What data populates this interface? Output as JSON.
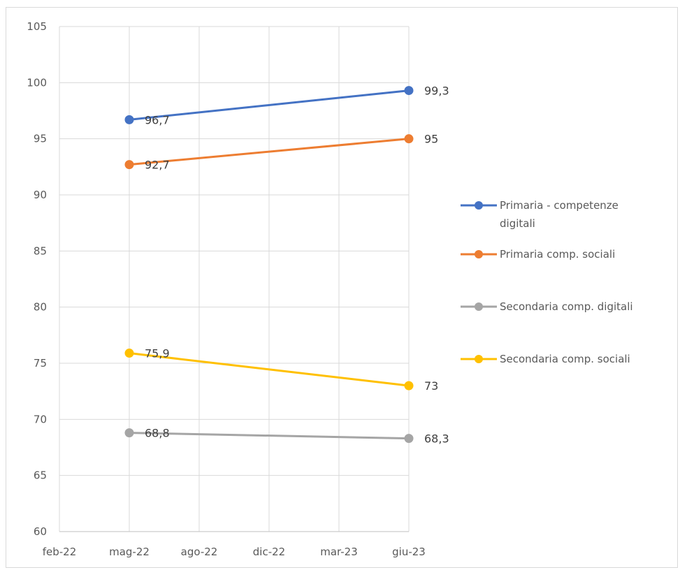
{
  "chart_data": {
    "type": "line",
    "title": "",
    "xlabel": "",
    "ylabel": "",
    "x_ticks": [
      "feb-22",
      "mag-22",
      "ago-22",
      "dic-22",
      "mar-23",
      "giu-23"
    ],
    "y_ticks": [
      60,
      65,
      70,
      75,
      80,
      85,
      90,
      95,
      100,
      105
    ],
    "ylim": [
      60,
      105
    ],
    "grid": "vertical and horizontal gridlines",
    "legend_position": "right",
    "x": [
      "mag-22",
      "giu-23"
    ],
    "series": [
      {
        "name": "Primaria - competenze digitali",
        "name_lines": [
          "Primaria - competenze",
          "digitali"
        ],
        "color": "#4472C4",
        "values": [
          96.7,
          99.3
        ],
        "labels": [
          "96,7",
          "99,3"
        ]
      },
      {
        "name": "Primaria comp. sociali",
        "name_lines": [
          "Primaria comp. sociali"
        ],
        "color": "#ED7D31",
        "values": [
          92.7,
          95
        ],
        "labels": [
          "92,7",
          "95"
        ]
      },
      {
        "name": "Secondaria comp. digitali",
        "name_lines": [
          "Secondaria comp. digitali"
        ],
        "color": "#A5A5A5",
        "values": [
          68.8,
          68.3
        ],
        "labels": [
          "68,8",
          "68,3"
        ]
      },
      {
        "name": "Secondaria comp. sociali",
        "name_lines": [
          "Secondaria comp. sociali"
        ],
        "color": "#FFC000",
        "values": [
          75.9,
          73
        ],
        "labels": [
          "75,9",
          "73"
        ]
      }
    ]
  }
}
